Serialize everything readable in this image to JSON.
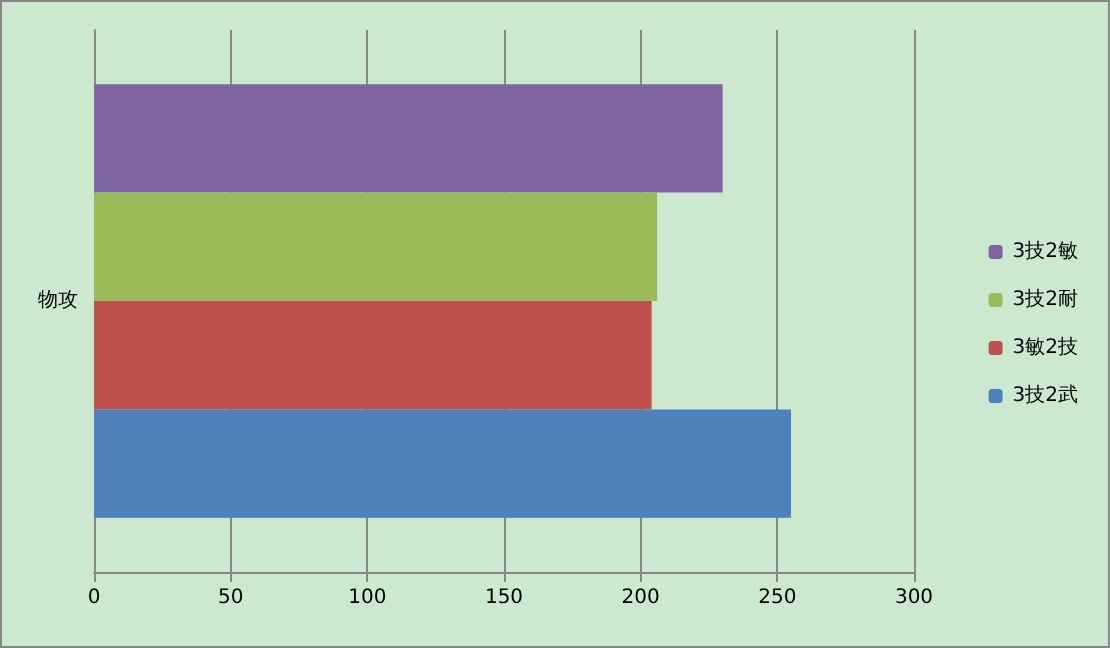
{
  "chart_data": {
    "type": "bar",
    "orientation": "horizontal",
    "categories": [
      "物攻"
    ],
    "series": [
      {
        "name": "3技2武",
        "color": "#4f81bd",
        "values": [
          255
        ]
      },
      {
        "name": "3敏2技",
        "color": "#c0504d",
        "values": [
          204
        ]
      },
      {
        "name": "3技2耐",
        "color": "#9bbb59",
        "values": [
          206
        ]
      },
      {
        "name": "3技2敏",
        "color": "#8064a2",
        "values": [
          230
        ]
      }
    ],
    "xlim": [
      0,
      300
    ],
    "xticks": [
      0,
      50,
      100,
      150,
      200,
      250,
      300
    ],
    "grid": "x",
    "legend": "right"
  }
}
